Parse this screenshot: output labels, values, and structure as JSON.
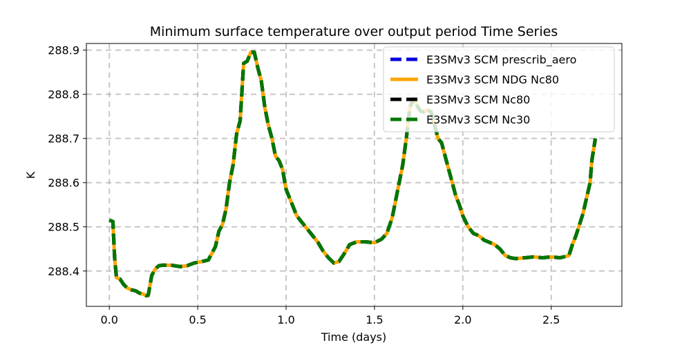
{
  "chart_data": {
    "type": "line",
    "title": "Minimum surface temperature over output period Time Series",
    "xlabel": "Time (days)",
    "ylabel": "K",
    "xlim": [
      -0.13,
      2.9
    ],
    "ylim": [
      288.32,
      288.915
    ],
    "xticks": [
      0.0,
      0.5,
      1.0,
      1.5,
      2.0,
      2.5
    ],
    "xtick_labels": [
      "0.0",
      "0.5",
      "1.0",
      "1.5",
      "2.0",
      "2.5"
    ],
    "yticks": [
      288.4,
      288.5,
      288.6,
      288.7,
      288.8,
      288.9
    ],
    "ytick_labels": [
      "288.4",
      "288.5",
      "288.6",
      "288.7",
      "288.8",
      "288.9"
    ],
    "grid": true,
    "legend_position": "top-right",
    "x": [
      0.0,
      0.02,
      0.03,
      0.04,
      0.06,
      0.08,
      0.1,
      0.12,
      0.15,
      0.17,
      0.19,
      0.21,
      0.22,
      0.24,
      0.26,
      0.28,
      0.3,
      0.35,
      0.4,
      0.44,
      0.48,
      0.52,
      0.56,
      0.58,
      0.6,
      0.62,
      0.64,
      0.66,
      0.68,
      0.7,
      0.72,
      0.74,
      0.76,
      0.78,
      0.8,
      0.82,
      0.84,
      0.86,
      0.88,
      0.9,
      0.92,
      0.94,
      0.96,
      0.98,
      1.0,
      1.03,
      1.06,
      1.09,
      1.12,
      1.15,
      1.18,
      1.21,
      1.24,
      1.27,
      1.3,
      1.33,
      1.36,
      1.4,
      1.45,
      1.5,
      1.54,
      1.57,
      1.6,
      1.62,
      1.64,
      1.66,
      1.68,
      1.7,
      1.72,
      1.74,
      1.76,
      1.78,
      1.8,
      1.82,
      1.84,
      1.86,
      1.88,
      1.9,
      1.92,
      1.94,
      1.96,
      1.98,
      2.0,
      2.03,
      2.06,
      2.09,
      2.12,
      2.15,
      2.18,
      2.21,
      2.24,
      2.27,
      2.3,
      2.35,
      2.4,
      2.45,
      2.5,
      2.55,
      2.6,
      2.62,
      2.64,
      2.66,
      2.68,
      2.7,
      2.72,
      2.73,
      2.75
    ],
    "series": [
      {
        "name": "E3SMv3 SCM prescrib_aero",
        "color": "#0000dd",
        "style": "dashed",
        "values": [
          288.515,
          288.512,
          288.43,
          288.385,
          288.382,
          288.37,
          288.362,
          288.358,
          288.355,
          288.35,
          288.348,
          288.344,
          288.345,
          288.39,
          288.405,
          288.412,
          288.413,
          288.413,
          288.41,
          288.412,
          288.418,
          288.421,
          288.425,
          288.44,
          288.455,
          288.49,
          288.505,
          288.54,
          288.6,
          288.64,
          288.71,
          288.74,
          288.87,
          288.875,
          288.895,
          288.895,
          288.86,
          288.83,
          288.77,
          288.73,
          288.7,
          288.66,
          288.65,
          288.63,
          288.585,
          288.555,
          288.525,
          288.51,
          288.495,
          288.48,
          288.465,
          288.445,
          288.43,
          288.418,
          288.422,
          288.44,
          288.46,
          288.466,
          288.466,
          288.464,
          288.472,
          288.485,
          288.52,
          288.56,
          288.6,
          288.64,
          288.7,
          288.77,
          288.79,
          288.775,
          288.762,
          288.76,
          288.765,
          288.76,
          288.73,
          288.7,
          288.69,
          288.66,
          288.63,
          288.6,
          288.57,
          288.55,
          288.525,
          288.5,
          288.485,
          288.48,
          288.47,
          288.465,
          288.46,
          288.45,
          288.435,
          288.43,
          288.428,
          288.43,
          288.432,
          288.43,
          288.432,
          288.43,
          288.435,
          288.46,
          288.48,
          288.505,
          288.53,
          288.565,
          288.6,
          288.65,
          288.7
        ]
      },
      {
        "name": "E3SMv3 SCM NDG Nc80",
        "color": "#ffa500",
        "style": "solid",
        "values": [
          288.515,
          288.512,
          288.43,
          288.385,
          288.382,
          288.37,
          288.362,
          288.358,
          288.355,
          288.35,
          288.348,
          288.344,
          288.345,
          288.39,
          288.405,
          288.412,
          288.413,
          288.413,
          288.41,
          288.412,
          288.418,
          288.421,
          288.425,
          288.44,
          288.455,
          288.49,
          288.505,
          288.54,
          288.6,
          288.64,
          288.71,
          288.74,
          288.87,
          288.875,
          288.895,
          288.895,
          288.86,
          288.83,
          288.77,
          288.73,
          288.7,
          288.66,
          288.65,
          288.63,
          288.585,
          288.555,
          288.525,
          288.51,
          288.495,
          288.48,
          288.465,
          288.445,
          288.43,
          288.418,
          288.422,
          288.44,
          288.46,
          288.466,
          288.466,
          288.464,
          288.472,
          288.485,
          288.52,
          288.56,
          288.6,
          288.64,
          288.7,
          288.77,
          288.79,
          288.775,
          288.762,
          288.76,
          288.765,
          288.76,
          288.73,
          288.7,
          288.69,
          288.66,
          288.63,
          288.6,
          288.57,
          288.55,
          288.525,
          288.5,
          288.485,
          288.48,
          288.47,
          288.465,
          288.46,
          288.45,
          288.435,
          288.43,
          288.428,
          288.43,
          288.432,
          288.43,
          288.432,
          288.43,
          288.435,
          288.46,
          288.48,
          288.505,
          288.53,
          288.565,
          288.6,
          288.65,
          288.7
        ]
      },
      {
        "name": "E3SMv3 SCM Nc80",
        "color": "#000000",
        "style": "dashed",
        "values": [
          288.515,
          288.512,
          288.43,
          288.385,
          288.382,
          288.37,
          288.362,
          288.358,
          288.355,
          288.35,
          288.348,
          288.344,
          288.345,
          288.39,
          288.405,
          288.412,
          288.413,
          288.413,
          288.41,
          288.412,
          288.418,
          288.421,
          288.425,
          288.44,
          288.455,
          288.49,
          288.505,
          288.54,
          288.6,
          288.64,
          288.71,
          288.74,
          288.87,
          288.875,
          288.895,
          288.895,
          288.86,
          288.83,
          288.77,
          288.73,
          288.7,
          288.66,
          288.65,
          288.63,
          288.585,
          288.555,
          288.525,
          288.51,
          288.495,
          288.48,
          288.465,
          288.445,
          288.43,
          288.418,
          288.422,
          288.44,
          288.46,
          288.466,
          288.466,
          288.464,
          288.472,
          288.485,
          288.52,
          288.56,
          288.6,
          288.64,
          288.7,
          288.77,
          288.79,
          288.775,
          288.762,
          288.76,
          288.765,
          288.76,
          288.73,
          288.7,
          288.69,
          288.66,
          288.63,
          288.6,
          288.57,
          288.55,
          288.525,
          288.5,
          288.485,
          288.48,
          288.47,
          288.465,
          288.46,
          288.45,
          288.435,
          288.43,
          288.428,
          288.43,
          288.432,
          288.43,
          288.432,
          288.43,
          288.435,
          288.46,
          288.48,
          288.505,
          288.53,
          288.565,
          288.6,
          288.65,
          288.7
        ]
      },
      {
        "name": "E3SMv3 SCM Nc30",
        "color": "#007700",
        "style": "dashed",
        "values": [
          288.515,
          288.512,
          288.43,
          288.385,
          288.382,
          288.37,
          288.362,
          288.358,
          288.355,
          288.35,
          288.348,
          288.344,
          288.345,
          288.39,
          288.405,
          288.412,
          288.413,
          288.413,
          288.41,
          288.412,
          288.418,
          288.421,
          288.425,
          288.44,
          288.455,
          288.49,
          288.505,
          288.54,
          288.6,
          288.64,
          288.71,
          288.74,
          288.87,
          288.875,
          288.895,
          288.895,
          288.86,
          288.83,
          288.77,
          288.73,
          288.7,
          288.66,
          288.65,
          288.63,
          288.585,
          288.555,
          288.525,
          288.51,
          288.495,
          288.48,
          288.465,
          288.445,
          288.43,
          288.418,
          288.422,
          288.44,
          288.46,
          288.466,
          288.466,
          288.464,
          288.472,
          288.485,
          288.52,
          288.56,
          288.6,
          288.64,
          288.7,
          288.77,
          288.79,
          288.775,
          288.762,
          288.76,
          288.765,
          288.76,
          288.73,
          288.7,
          288.69,
          288.66,
          288.63,
          288.6,
          288.57,
          288.55,
          288.525,
          288.5,
          288.485,
          288.48,
          288.47,
          288.465,
          288.46,
          288.45,
          288.435,
          288.43,
          288.428,
          288.43,
          288.432,
          288.43,
          288.432,
          288.43,
          288.435,
          288.46,
          288.48,
          288.505,
          288.53,
          288.565,
          288.6,
          288.65,
          288.7
        ]
      }
    ]
  }
}
